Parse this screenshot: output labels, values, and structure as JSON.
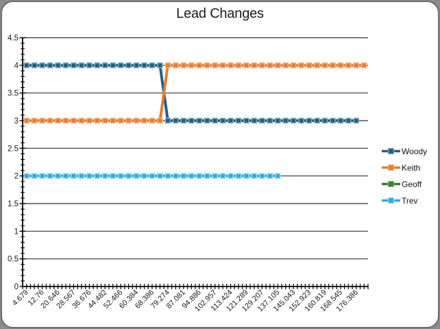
{
  "window": {
    "canvas_background": "#8C8C8C",
    "frame_fill": "#FFFFFF",
    "frame_border_color": "#6E6E6E"
  },
  "chart_data": {
    "type": "line",
    "title": "Lead Changes",
    "xlabel": "",
    "ylabel": "",
    "ylim": [
      0,
      4.5
    ],
    "y_major_step": 0.5,
    "y_minor_step": 0.1,
    "y_tick_labels": [
      "0",
      "0.5",
      "1",
      "1.5",
      "2",
      "2.5",
      "3",
      "3.5",
      "4",
      "4.5"
    ],
    "n_categories": 44,
    "x_tick_label_interval": 2,
    "x_minor_ticks_per_category": 2,
    "x_tick_labels": [
      "4.679",
      "12.76",
      "20.646",
      "28.567",
      "36.676",
      "44.482",
      "52.466",
      "60.384",
      "68.386",
      "79.274",
      "87.081",
      "94.886",
      "102.957",
      "113.424",
      "121.289",
      "129.207",
      "137.105",
      "145.043",
      "152.923",
      "160.819",
      "168.545",
      "176.386"
    ],
    "x_label_rotation_deg": -45,
    "grid": "horizontal-major",
    "grid_color": "#333333",
    "axis_color": "#000000",
    "text_color": "#1a1a1a",
    "legend_position": "right",
    "series": [
      {
        "name": "Woody",
        "color": "#1F6083",
        "marker_border": "#86AFC4",
        "marker": "square",
        "start_category": 0,
        "runs": [
          {
            "value": 4,
            "count": 18
          },
          {
            "value": 3,
            "count": 25
          }
        ]
      },
      {
        "name": "Keith",
        "color": "#E87D31",
        "marker_border": "#F4B183",
        "marker": "square",
        "start_category": 0,
        "runs": [
          {
            "value": 3,
            "count": 18
          },
          {
            "value": 4,
            "count": 26
          }
        ]
      },
      {
        "name": "Geoff",
        "color": "#377B2B",
        "marker_border": "#8CBF7E",
        "marker": "square",
        "start_category": 0,
        "runs": []
      },
      {
        "name": "Trev",
        "color": "#2FA8DF",
        "marker_border": "#9ADCF9",
        "marker": "square",
        "start_category": 0,
        "runs": [
          {
            "value": 2,
            "count": 33
          }
        ]
      }
    ],
    "notes": "Geoff appears in the legend but has no visible data points on the plot (hidden behind other series or empty). Woody leads at 4 and Keith at 3 until the 79.274 category, where they swap. Trev stays at 2 and ends at the 137.105 category."
  }
}
